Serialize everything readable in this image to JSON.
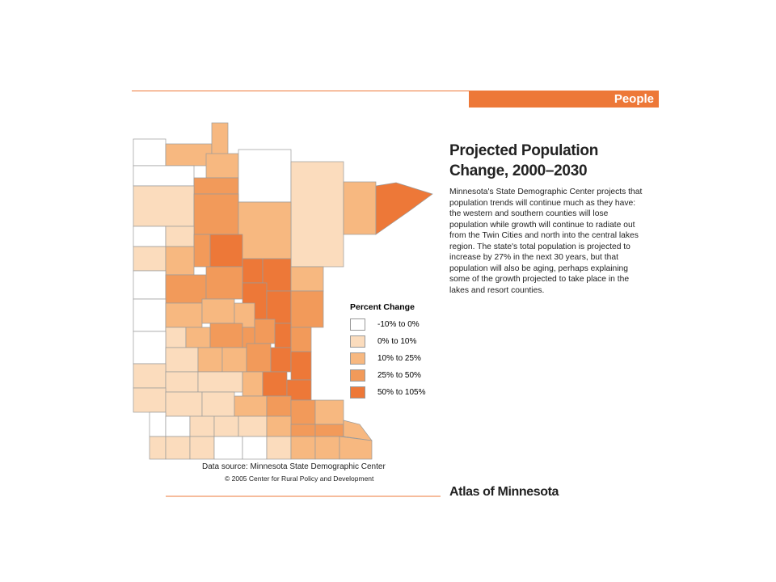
{
  "header": {
    "section": "People",
    "title_lines": [
      "Projected Population",
      "Change, 2000–2030"
    ]
  },
  "body_lines": [
    "Minnesota's State Demographic Center projects that",
    "population trends will continue much as they have:",
    "the western and southern counties will lose",
    "population while growth will continue to radiate out",
    "from the Twin Cities and north into the central lakes",
    "region. The state's total population is projected to",
    "increase by 27% in the next 30 years, but that",
    "population will also be aging, perhaps explaining",
    "some of the growth projected to take place in the",
    "lakes and resort counties."
  ],
  "legend": {
    "title": "Percent Change",
    "items": [
      {
        "label": "-10% to 0%",
        "color": "#ffffff"
      },
      {
        "label": "0% to 10%",
        "color": "#fbdcbd"
      },
      {
        "label": "10% to 25%",
        "color": "#f7b880"
      },
      {
        "label": "25% to 50%",
        "color": "#f29a5a"
      },
      {
        "label": "50% to 105%",
        "color": "#ed7838"
      }
    ]
  },
  "source": "Data source: Minnesota State Demographic Center",
  "copyright": "© 2005 Center for Rural Policy and Development",
  "footer": "Atlas of Minnesota"
}
